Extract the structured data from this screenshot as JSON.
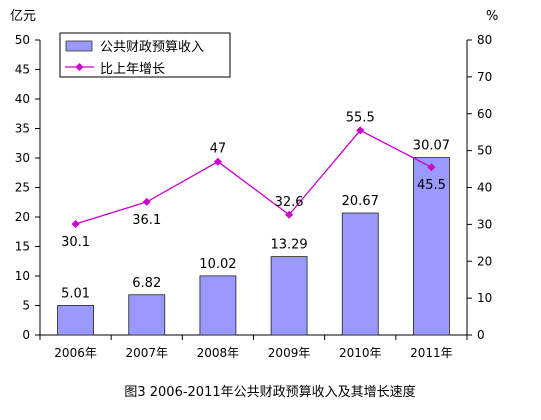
{
  "chart_data": {
    "type": "bar",
    "title": "图3   2006-2011年公共财政预算收入及其增长速度",
    "categories": [
      "2006年",
      "2007年",
      "2008年",
      "2009年",
      "2010年",
      "2011年"
    ],
    "y_left": {
      "label": "亿元",
      "min": 0,
      "max": 50,
      "ticks": [
        0,
        5,
        10,
        15,
        20,
        25,
        30,
        35,
        40,
        45,
        50
      ]
    },
    "y_right": {
      "label": "%",
      "min": 0,
      "max": 80,
      "ticks": [
        0,
        10,
        20,
        30,
        40,
        50,
        60,
        70,
        80
      ]
    },
    "series": [
      {
        "name": "公共财政预算收入",
        "type": "bar",
        "axis": "left",
        "values": [
          5.01,
          6.82,
          10.02,
          13.29,
          20.67,
          30.07
        ],
        "labels": [
          "5.01",
          "6.82",
          "10.02",
          "13.29",
          "20.67",
          "30.07"
        ],
        "color": "#9999ff"
      },
      {
        "name": "比上年增长",
        "type": "line",
        "axis": "right",
        "values": [
          30.1,
          36.1,
          47,
          32.6,
          55.5,
          45.5
        ],
        "labels": [
          "30.1",
          "36.1",
          "47",
          "32.6",
          "55.5",
          "45.5"
        ],
        "color": "#cc00cc"
      }
    ],
    "legend_position": "top-left",
    "grid": false
  }
}
